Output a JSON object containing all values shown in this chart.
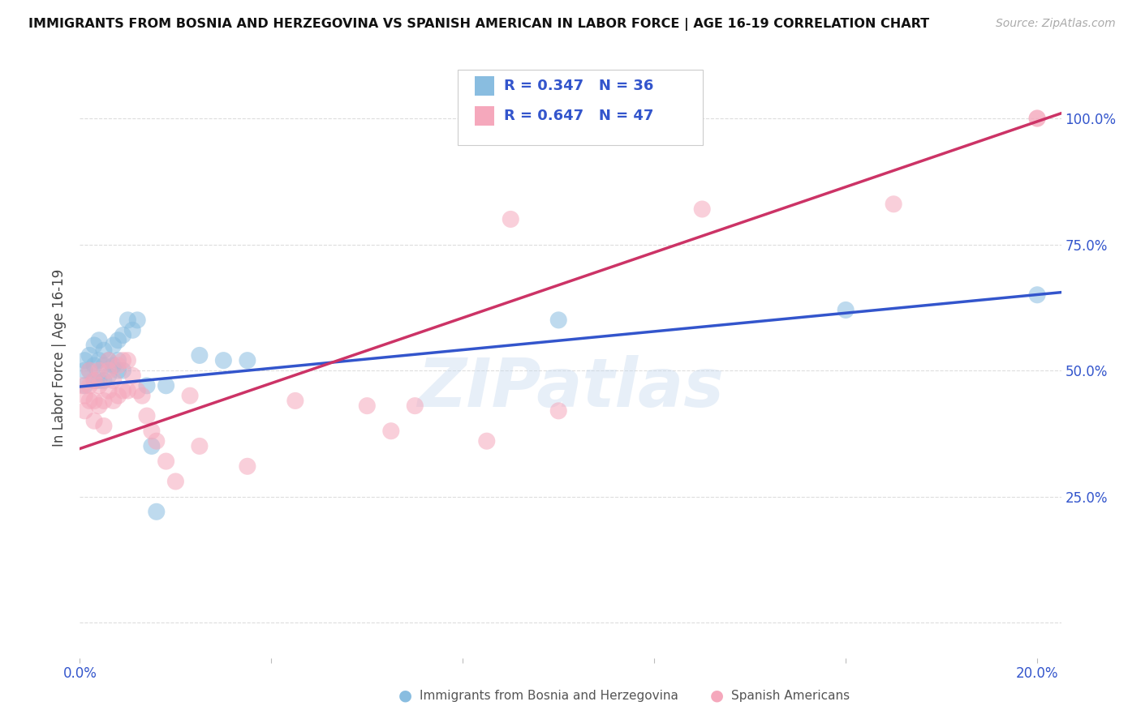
{
  "title": "IMMIGRANTS FROM BOSNIA AND HERZEGOVINA VS SPANISH AMERICAN IN LABOR FORCE | AGE 16-19 CORRELATION CHART",
  "source": "Source: ZipAtlas.com",
  "ylabel": "In Labor Force | Age 16-19",
  "xlim": [
    0.0,
    0.205
  ],
  "ylim": [
    -0.07,
    1.12
  ],
  "yticks": [
    0.0,
    0.25,
    0.5,
    0.75,
    1.0
  ],
  "ytick_labels": [
    "",
    "25.0%",
    "50.0%",
    "75.0%",
    "100.0%"
  ],
  "xticks": [
    0.0,
    0.04,
    0.08,
    0.12,
    0.16,
    0.2
  ],
  "xtick_labels": [
    "0.0%",
    "",
    "",
    "",
    "",
    "20.0%"
  ],
  "blue_color": "#89bde0",
  "pink_color": "#f5a8bc",
  "blue_line_color": "#3355cc",
  "pink_line_color": "#cc3366",
  "axis_label_color": "#3355cc",
  "watermark": "ZIPatlas",
  "blue_line_x0": 0.0,
  "blue_line_y0": 0.468,
  "blue_line_x1": 0.205,
  "blue_line_y1": 0.655,
  "pink_line_x0": 0.0,
  "pink_line_y0": 0.345,
  "pink_line_x1": 0.205,
  "pink_line_y1": 1.01,
  "blue_points_x": [
    0.001,
    0.001,
    0.001,
    0.002,
    0.002,
    0.003,
    0.003,
    0.003,
    0.004,
    0.004,
    0.004,
    0.005,
    0.005,
    0.005,
    0.006,
    0.006,
    0.007,
    0.007,
    0.008,
    0.008,
    0.008,
    0.009,
    0.009,
    0.01,
    0.011,
    0.012,
    0.014,
    0.015,
    0.016,
    0.018,
    0.025,
    0.03,
    0.035,
    0.1,
    0.16,
    0.2
  ],
  "blue_points_y": [
    0.47,
    0.5,
    0.52,
    0.5,
    0.53,
    0.48,
    0.51,
    0.55,
    0.48,
    0.52,
    0.56,
    0.48,
    0.51,
    0.54,
    0.49,
    0.52,
    0.51,
    0.55,
    0.5,
    0.52,
    0.56,
    0.5,
    0.57,
    0.6,
    0.58,
    0.6,
    0.47,
    0.35,
    0.22,
    0.47,
    0.53,
    0.52,
    0.52,
    0.6,
    0.62,
    0.65
  ],
  "pink_points_x": [
    0.0005,
    0.001,
    0.001,
    0.002,
    0.002,
    0.002,
    0.003,
    0.003,
    0.003,
    0.004,
    0.004,
    0.004,
    0.005,
    0.005,
    0.006,
    0.006,
    0.006,
    0.007,
    0.007,
    0.008,
    0.008,
    0.009,
    0.009,
    0.01,
    0.01,
    0.011,
    0.012,
    0.013,
    0.014,
    0.015,
    0.016,
    0.018,
    0.02,
    0.023,
    0.025,
    0.035,
    0.045,
    0.06,
    0.065,
    0.07,
    0.085,
    0.09,
    0.1,
    0.13,
    0.17,
    0.2,
    0.2
  ],
  "pink_points_y": [
    0.47,
    0.42,
    0.45,
    0.44,
    0.47,
    0.5,
    0.4,
    0.44,
    0.48,
    0.43,
    0.47,
    0.5,
    0.39,
    0.44,
    0.46,
    0.5,
    0.52,
    0.44,
    0.48,
    0.45,
    0.51,
    0.46,
    0.52,
    0.46,
    0.52,
    0.49,
    0.46,
    0.45,
    0.41,
    0.38,
    0.36,
    0.32,
    0.28,
    0.45,
    0.35,
    0.31,
    0.44,
    0.43,
    0.38,
    0.43,
    0.36,
    0.8,
    0.42,
    0.82,
    0.83,
    1.0,
    1.0
  ],
  "background_color": "#ffffff",
  "grid_color": "#dddddd"
}
